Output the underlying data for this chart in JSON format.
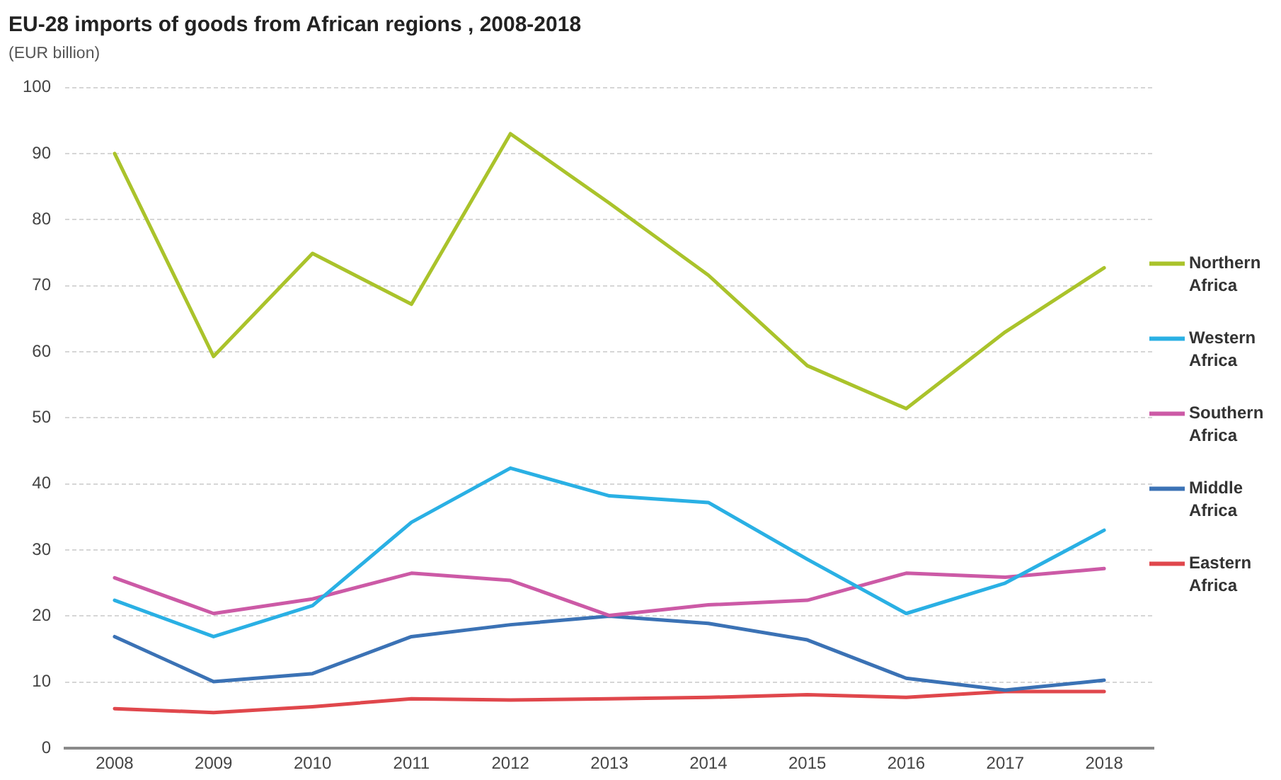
{
  "chart_data": {
    "type": "line",
    "title": "EU-28 imports of goods from African regions , 2008-2018",
    "subtitle": "(EUR billion)",
    "categories": [
      "2008",
      "2009",
      "2010",
      "2011",
      "2012",
      "2013",
      "2014",
      "2015",
      "2016",
      "2017",
      "2018"
    ],
    "series": [
      {
        "name": "Northern Africa",
        "color": "#aac32b",
        "values": [
          90,
          59.3,
          74.9,
          67.2,
          93.0,
          82.5,
          71.6,
          57.9,
          51.4,
          63.0,
          72.7
        ]
      },
      {
        "name": "Western Africa",
        "color": "#2ab0e4",
        "values": [
          22.4,
          16.9,
          21.6,
          34.2,
          42.4,
          38.2,
          37.2,
          28.6,
          20.4,
          25.0,
          33.0
        ]
      },
      {
        "name": "Southern Africa",
        "color": "#cc5aa6",
        "values": [
          25.8,
          20.4,
          22.6,
          26.5,
          25.4,
          20.1,
          21.7,
          22.4,
          26.5,
          25.9,
          27.2
        ]
      },
      {
        "name": "Middle Africa",
        "color": "#3b72b5",
        "values": [
          16.9,
          10.1,
          11.3,
          16.9,
          18.7,
          20.0,
          18.9,
          16.4,
          10.6,
          8.8,
          10.3
        ]
      },
      {
        "name": "Eastern Africa",
        "color": "#e0474c",
        "values": [
          6.0,
          5.4,
          6.3,
          7.5,
          7.3,
          7.5,
          7.7,
          8.1,
          7.7,
          8.6,
          8.6
        ]
      }
    ],
    "ylim": [
      0,
      100
    ],
    "yticks": [
      0,
      10,
      20,
      30,
      40,
      50,
      60,
      70,
      80,
      90,
      100
    ],
    "grid": "y",
    "legend": "right",
    "marker": "none",
    "line_style": "solid"
  }
}
